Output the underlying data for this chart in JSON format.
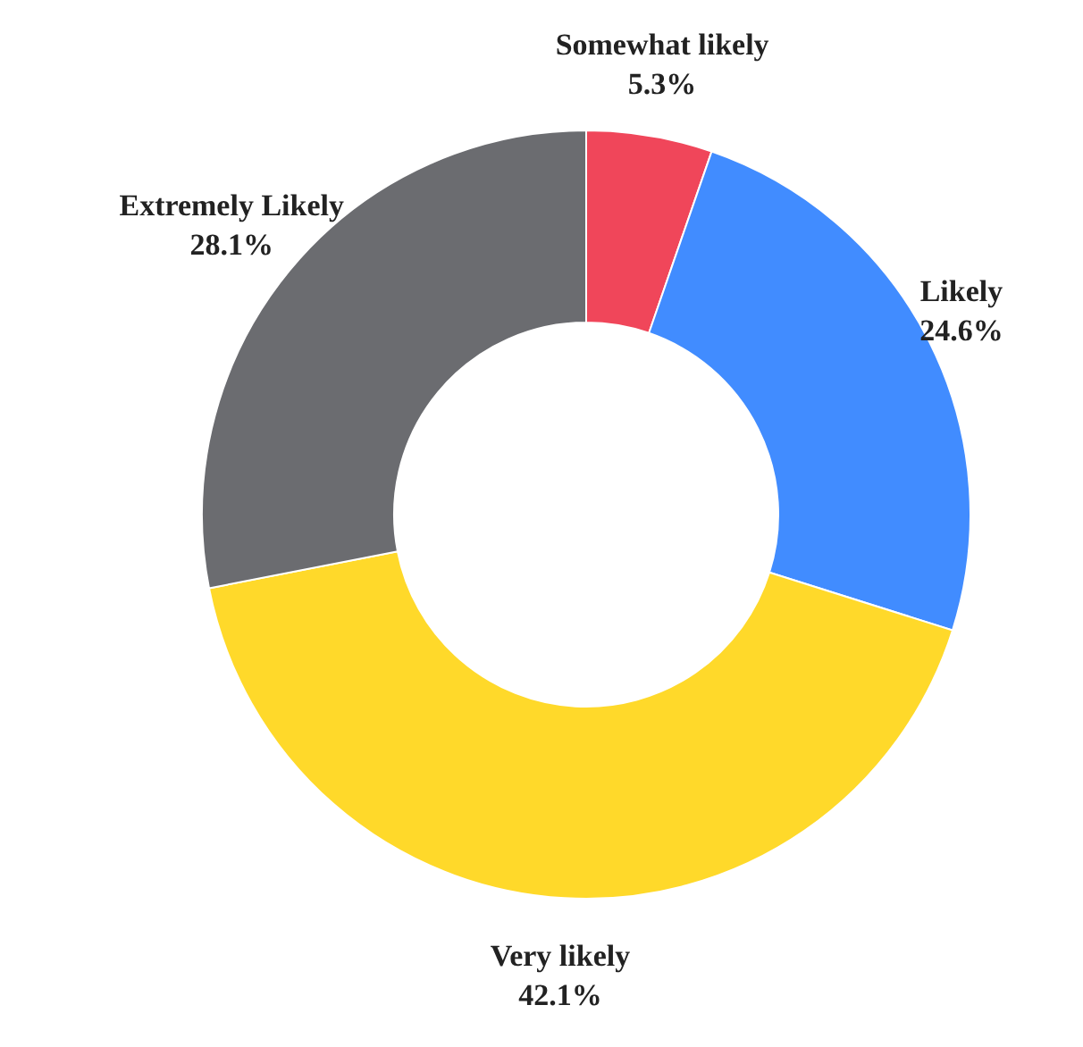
{
  "chart_data": {
    "type": "donut",
    "categories": [
      "Somewhat likely",
      "Likely",
      "Very likely",
      "Extremely Likely"
    ],
    "values": [
      5.3,
      24.6,
      42.1,
      28.1
    ],
    "colors": [
      "#f0465a",
      "#418cff",
      "#ffd92a",
      "#6b6c70"
    ],
    "value_labels": [
      "5.3%",
      "24.6%",
      "42.1%",
      "28.1%"
    ]
  }
}
